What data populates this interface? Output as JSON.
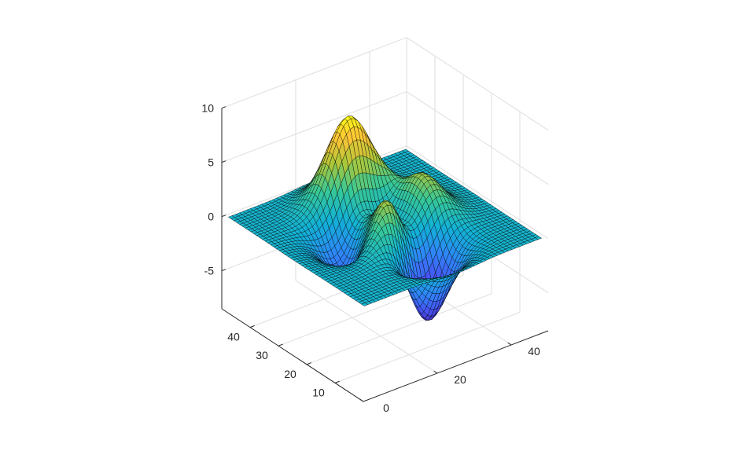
{
  "chart_data": {
    "type": "surface",
    "function": "peaks",
    "grid_size": [
      49,
      49
    ],
    "title": "",
    "xlabel": "",
    "ylabel": "",
    "zlabel": "",
    "xlim": [
      0,
      50
    ],
    "ylim": [
      0,
      50
    ],
    "zlim": [
      -8.5,
      10
    ],
    "z_range": [
      -6.55,
      8.1
    ],
    "x_ticks": [
      "0",
      "20",
      "40"
    ],
    "y_ticks": [
      "10",
      "20",
      "30",
      "40"
    ],
    "z_ticks": [
      "-5",
      "0",
      "5",
      "10"
    ],
    "colormap": "parula",
    "edge_color": "#000000",
    "grid": true,
    "view": "3-D default (azimuth -37.5, elevation 30)"
  }
}
